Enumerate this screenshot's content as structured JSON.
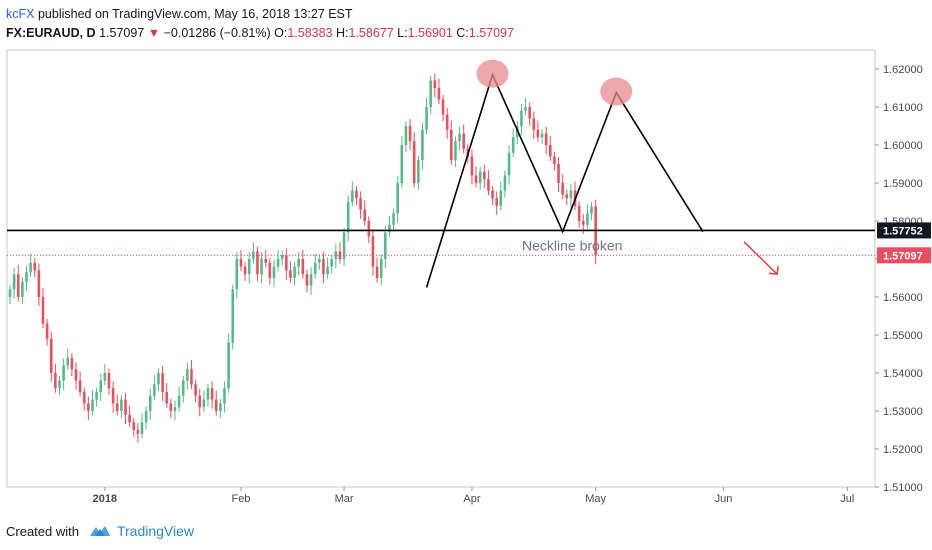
{
  "header": {
    "author": "kcFX",
    "published_text": "published on TradingView.com, May 16, 2018 13:27 EST",
    "symbol": "FX:EURAUD, D",
    "last": "1.57097",
    "change_arrow": "▼",
    "change": "−0.01286 (−0.81%)",
    "o_label": "O:",
    "o_value": "1.58383",
    "h_label": "H:",
    "h_value": "1.58677",
    "l_label": "L:",
    "l_value": "1.56901",
    "c_label": "C:",
    "c_value": "1.57097"
  },
  "footer": {
    "created_with": "Created with",
    "brand": "TradingView",
    "logo_icon": "tradingview-logo-icon"
  },
  "colors": {
    "up": "#53b987",
    "down": "#eb4d5c",
    "text": "#131722",
    "axis": "#d6d6d6",
    "price_marker": "#eb4d5c",
    "neckline_marker": "#131722",
    "highlight": "#e8898f"
  },
  "chart_data": {
    "type": "candlestick",
    "symbol": "FX:EURAUD",
    "interval": "D",
    "ylim": [
      1.51,
      1.625
    ],
    "y_ticks": [
      "1.62000",
      "1.61000",
      "1.60000",
      "1.59000",
      "1.58000",
      "1.57000",
      "1.56000",
      "1.55000",
      "1.54000",
      "1.53000",
      "1.52000",
      "1.51000"
    ],
    "y_tick_values": [
      1.62,
      1.61,
      1.6,
      1.59,
      1.58,
      1.57,
      1.56,
      1.55,
      1.54,
      1.53,
      1.52,
      1.51
    ],
    "x_ticks": [
      {
        "label": "2018",
        "index": 23
      },
      {
        "label": "Feb",
        "index": 56
      },
      {
        "label": "Mar",
        "index": 81
      },
      {
        "label": "Apr",
        "index": 112
      },
      {
        "label": "May",
        "index": 142
      },
      {
        "label": "Jun",
        "index": 173
      },
      {
        "label": "Jul",
        "index": 203
      }
    ],
    "closes": [
      1.562,
      1.566,
      1.56,
      1.564,
      1.5665,
      1.569,
      1.567,
      1.56,
      1.553,
      1.549,
      1.54,
      1.536,
      1.538,
      1.542,
      1.544,
      1.541,
      1.538,
      1.535,
      1.532,
      1.53,
      1.533,
      1.535,
      1.538,
      1.54,
      1.536,
      1.532,
      1.53,
      1.533,
      1.529,
      1.527,
      1.525,
      1.524,
      1.527,
      1.53,
      1.534,
      1.537,
      1.54,
      1.535,
      1.532,
      1.53,
      1.531,
      1.534,
      1.538,
      1.541,
      1.537,
      1.534,
      1.531,
      1.533,
      1.536,
      1.533,
      1.53,
      1.532,
      1.536,
      1.548,
      1.562,
      1.57,
      1.568,
      1.566,
      1.57,
      1.572,
      1.566,
      1.57,
      1.569,
      1.565,
      1.568,
      1.57,
      1.571,
      1.567,
      1.565,
      1.568,
      1.57,
      1.566,
      1.563,
      1.566,
      1.569,
      1.57,
      1.566,
      1.568,
      1.57,
      1.572,
      1.57,
      1.577,
      1.585,
      1.588,
      1.586,
      1.583,
      1.58,
      1.576,
      1.568,
      1.565,
      1.57,
      1.577,
      1.579,
      1.582,
      1.59,
      1.6,
      1.605,
      1.601,
      1.59,
      1.596,
      1.604,
      1.61,
      1.617,
      1.615,
      1.612,
      1.608,
      1.604,
      1.596,
      1.601,
      1.603,
      1.599,
      1.597,
      1.592,
      1.59,
      1.593,
      1.591,
      1.588,
      1.586,
      1.584,
      1.588,
      1.592,
      1.598,
      1.602,
      1.605,
      1.609,
      1.61,
      1.607,
      1.604,
      1.602,
      1.603,
      1.6,
      1.597,
      1.595,
      1.59,
      1.587,
      1.586,
      1.588,
      1.584,
      1.58,
      1.579,
      1.582,
      1.5838,
      1.571
    ],
    "annotations": {
      "neckline_price": 1.57752,
      "neckline_label": "Neckline broken",
      "last_price": 1.57097,
      "pattern_path": [
        [
          101,
          1.5625
        ],
        [
          117,
          1.6185
        ],
        [
          134,
          1.5772
        ],
        [
          147,
          1.6138
        ],
        [
          168,
          1.5772
        ]
      ],
      "tops": [
        [
          117,
          1.6185
        ],
        [
          147,
          1.6138
        ]
      ],
      "arrow": [
        [
          178,
          1.5745
        ],
        [
          186,
          1.566
        ]
      ]
    }
  }
}
